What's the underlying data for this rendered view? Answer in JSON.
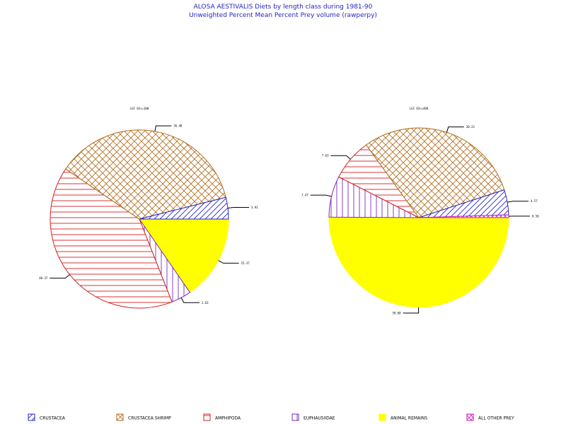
{
  "chart_data": {
    "type": "pie",
    "title": "ALOSA AESTIVALIS Diets by length class during 1981-90",
    "subtitle": "Unweighted Percent Mean Percent Prey  volume (rawperpy)",
    "legend_placement": "bottom",
    "categories": [
      "CRUSTACEA",
      "CRUSTACEA SHRIMP",
      "AMPHIPODA",
      "EUPHAUSIIDAE",
      "ANIMAL REMAINS",
      "ALL OTHER PREY"
    ],
    "colors": {
      "CRUSTACEA": "#2424c8",
      "CRUSTACEA SHRIMP": "#b06a1a",
      "AMPHIPODA": "#d42020",
      "EUPHAUSIIDAE": "#7a2ab8",
      "ANIMAL REMAINS": "#ffff00",
      "ALL OTHER PREY": "#d020c0"
    },
    "pies": [
      {
        "label": "LGC 01<=100",
        "slices": [
          {
            "category": "ANIMAL REMAINS",
            "value": 15.37,
            "label": "15.37"
          },
          {
            "category": "EUPHAUSIIDAE",
            "value": 3.63,
            "label": "3.63"
          },
          {
            "category": "AMPHIPODA",
            "value": 40.37,
            "label": "40.37"
          },
          {
            "category": "CRUSTACEA SHRIMP",
            "value": 36.48,
            "label": "36.48"
          },
          {
            "category": "CRUSTACEA",
            "value": 3.91,
            "label": "3.91"
          }
        ]
      },
      {
        "label": "LGC 03<=400",
        "slices": [
          {
            "category": "ANIMAL REMAINS",
            "value": 50.6,
            "label": "50.60"
          },
          {
            "category": "EUPHAUSIIDAE",
            "value": 7.47,
            "label": "7.47"
          },
          {
            "category": "AMPHIPODA",
            "value": 7.63,
            "label": "7.63"
          },
          {
            "category": "CRUSTACEA SHRIMP",
            "value": 30.23,
            "label": "30.23"
          },
          {
            "category": "CRUSTACEA",
            "value": 4.57,
            "label": "4.57"
          },
          {
            "category": "ALL OTHER PREY",
            "value": 0.5,
            "label": "0.50"
          }
        ]
      }
    ]
  }
}
